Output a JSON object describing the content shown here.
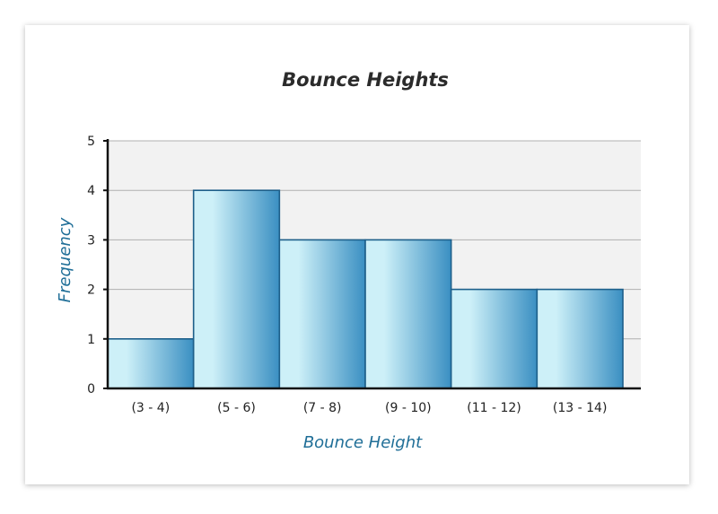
{
  "chart_data": {
    "type": "bar",
    "title": "Bounce Heights",
    "xlabel": "Bounce Height",
    "ylabel": "Frequency",
    "categories": [
      "(3 - 4)",
      "(5 - 6)",
      "(7 - 8)",
      "(9 - 10)",
      "(11 - 12)",
      "(13 - 14)"
    ],
    "values": [
      1,
      4,
      3,
      3,
      2,
      2
    ],
    "ylim": [
      0,
      5
    ],
    "yticks": [
      0,
      1,
      2,
      3,
      4,
      5
    ],
    "grid": true,
    "colors": {
      "bar_dark": "#3a8fc2",
      "bar_light": "#cdf0f8",
      "bar_edge": "#1d5f8a",
      "plot_bg": "#f2f2f2",
      "grid": "#b0b0b0",
      "axis": "#111111",
      "axis_title": "#1f6e97"
    }
  }
}
